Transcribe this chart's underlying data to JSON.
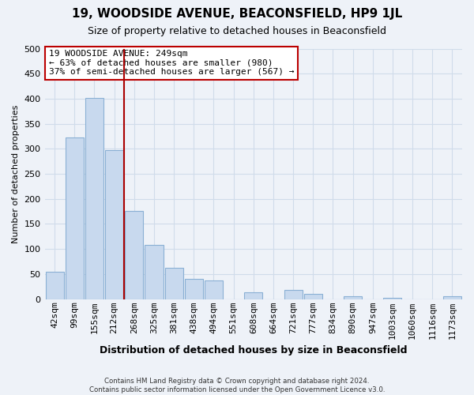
{
  "title": "19, WOODSIDE AVENUE, BEACONSFIELD, HP9 1JL",
  "subtitle": "Size of property relative to detached houses in Beaconsfield",
  "xlabel": "Distribution of detached houses by size in Beaconsfield",
  "ylabel": "Number of detached properties",
  "categories": [
    "42sqm",
    "99sqm",
    "155sqm",
    "212sqm",
    "268sqm",
    "325sqm",
    "381sqm",
    "438sqm",
    "494sqm",
    "551sqm",
    "608sqm",
    "664sqm",
    "721sqm",
    "777sqm",
    "834sqm",
    "890sqm",
    "947sqm",
    "1003sqm",
    "1060sqm",
    "1116sqm",
    "1173sqm"
  ],
  "values": [
    55,
    322,
    402,
    298,
    176,
    108,
    63,
    41,
    37,
    0,
    13,
    0,
    18,
    10,
    0,
    5,
    0,
    2,
    0,
    0,
    5
  ],
  "bar_color": "#c8d9ee",
  "bar_edge_color": "#8ab0d4",
  "vline_x_index": 3,
  "vline_color": "#aa0000",
  "annotation_text": "19 WOODSIDE AVENUE: 249sqm\n← 63% of detached houses are smaller (980)\n37% of semi-detached houses are larger (567) →",
  "annotation_box_facecolor": "#ffffff",
  "annotation_box_edgecolor": "#bb0000",
  "ylim": [
    0,
    500
  ],
  "yticks": [
    0,
    50,
    100,
    150,
    200,
    250,
    300,
    350,
    400,
    450,
    500
  ],
  "footer": "Contains HM Land Registry data © Crown copyright and database right 2024.\nContains public sector information licensed under the Open Government Licence v3.0.",
  "grid_color": "#d0dcea",
  "bg_color": "#eef2f8",
  "title_fontsize": 11,
  "subtitle_fontsize": 9,
  "xlabel_fontsize": 9,
  "ylabel_fontsize": 8,
  "tick_fontsize": 8,
  "annot_fontsize": 8
}
